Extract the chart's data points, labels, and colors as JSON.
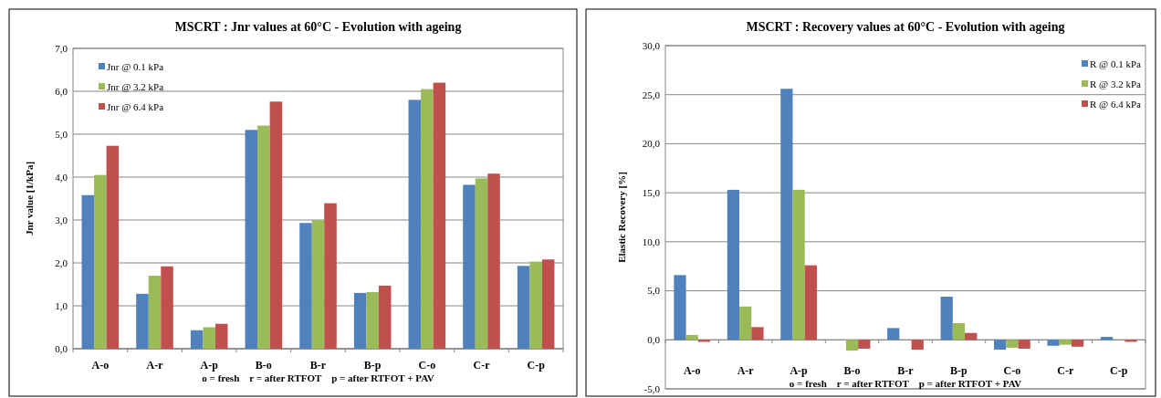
{
  "chart_data": [
    {
      "type": "bar",
      "title": "MSCRT : Jnr values at 60°C  -  Evolution with ageing",
      "ylabel": "Jnr  value [1/kPa]",
      "categories": [
        "A-o",
        "A-r",
        "A-p",
        "B-o",
        "B-r",
        "B-p",
        "C-o",
        "C-r",
        "C-p"
      ],
      "series": [
        {
          "name": "Jnr @ 0.1 kPa",
          "color": "#4f81bd",
          "values": [
            3.58,
            1.28,
            0.43,
            5.1,
            2.93,
            1.3,
            5.8,
            3.82,
            1.93
          ]
        },
        {
          "name": "Jnr @ 3.2 kPa",
          "color": "#9bbb59",
          "values": [
            4.05,
            1.7,
            0.5,
            5.2,
            3.0,
            1.32,
            6.05,
            3.97,
            2.03
          ]
        },
        {
          "name": "Jnr @ 6.4 kPa",
          "color": "#c0504d",
          "values": [
            4.73,
            1.92,
            0.58,
            5.76,
            3.39,
            1.47,
            6.2,
            4.08,
            2.08
          ]
        }
      ],
      "ylim": [
        0,
        7
      ],
      "yticks": [
        {
          "value": 0,
          "label": "0,0"
        },
        {
          "value": 1,
          "label": "1,0"
        },
        {
          "value": 2,
          "label": "2,0"
        },
        {
          "value": 3,
          "label": "3,0"
        },
        {
          "value": 4,
          "label": "4,0"
        },
        {
          "value": 5,
          "label": "5,0"
        },
        {
          "value": 6,
          "label": "6,0"
        },
        {
          "value": 7,
          "label": "7,0"
        }
      ],
      "grid": "y",
      "legend": "top left",
      "annotations": [
        "o = fresh    r = after RTFOT    p = after RTFOT + PAV"
      ]
    },
    {
      "type": "bar",
      "title": "MSCRT : Recovery values at 60°C  -  Evolution with ageing",
      "ylabel": "Elastic Recovery [%]",
      "categories": [
        "A-o",
        "A-r",
        "A-p",
        "B-o",
        "B-r",
        "B-p",
        "C-o",
        "C-r",
        "C-p"
      ],
      "series": [
        {
          "name": "R @ 0.1 kPa",
          "color": "#4f81bd",
          "values": [
            6.6,
            15.3,
            25.6,
            0,
            1.2,
            4.4,
            -1.0,
            -0.6,
            0.3
          ]
        },
        {
          "name": "R @ 3.2 kPa",
          "color": "#9bbb59",
          "values": [
            0.5,
            3.4,
            15.3,
            -1.1,
            0,
            1.7,
            -0.8,
            -0.5,
            0
          ]
        },
        {
          "name": "R @ 6.4 kPa",
          "color": "#c0504d",
          "values": [
            -0.2,
            1.3,
            7.6,
            -0.9,
            -1.0,
            0.7,
            -0.9,
            -0.7,
            -0.2
          ]
        }
      ],
      "ylim": [
        -5,
        30
      ],
      "yticks": [
        {
          "value": -5,
          "label": "-5,0"
        },
        {
          "value": 0,
          "label": "0,0"
        },
        {
          "value": 5,
          "label": "5,0"
        },
        {
          "value": 10,
          "label": "10,0"
        },
        {
          "value": 15,
          "label": "15,0"
        },
        {
          "value": 20,
          "label": "20,0"
        },
        {
          "value": 25,
          "label": "25,0"
        },
        {
          "value": 30,
          "label": "30,0"
        }
      ],
      "grid": "y",
      "legend": "top right",
      "annotations": [
        "o = fresh    r = after RTFOT    p = after RTFOT + PAV"
      ]
    }
  ]
}
